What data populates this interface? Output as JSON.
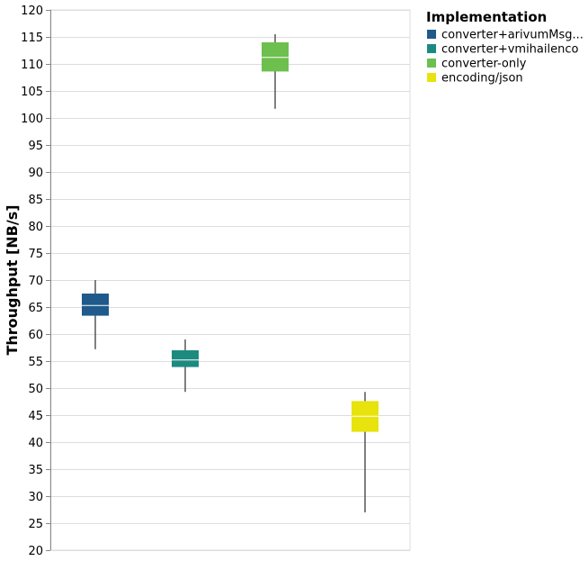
{
  "chart_data": {
    "type": "boxplot",
    "ylabel": "Throughput [NB/s]",
    "xlabel": "",
    "ylim": [
      20,
      120
    ],
    "ytick_step": 5,
    "yticks": [
      "20",
      "25",
      "30",
      "35",
      "40",
      "45",
      "50",
      "55",
      "60",
      "65",
      "70",
      "75",
      "80",
      "85",
      "90",
      "95",
      "100",
      "105",
      "110",
      "115",
      "120"
    ],
    "grid": true,
    "legend": {
      "title": "Implementation",
      "position": "top-right"
    },
    "series": [
      {
        "name": "converter+arivumMsg...",
        "color": "#1f5a8a",
        "min": 57.2,
        "q1": 63.4,
        "median": 65.3,
        "q3": 67.5,
        "max": 70.0
      },
      {
        "name": "converter+vmihailenco",
        "color": "#1d8a80",
        "min": 49.3,
        "q1": 53.9,
        "median": 55.2,
        "q3": 57.0,
        "max": 59.0
      },
      {
        "name": "converter-only",
        "color": "#6dbf4e",
        "min": 101.7,
        "q1": 108.6,
        "median": 111.2,
        "q3": 114.0,
        "max": 115.5
      },
      {
        "name": "encoding/json",
        "color": "#e8e30c",
        "min": 27.0,
        "q1": 41.9,
        "median": 44.8,
        "q3": 47.6,
        "max": 49.3
      }
    ]
  }
}
